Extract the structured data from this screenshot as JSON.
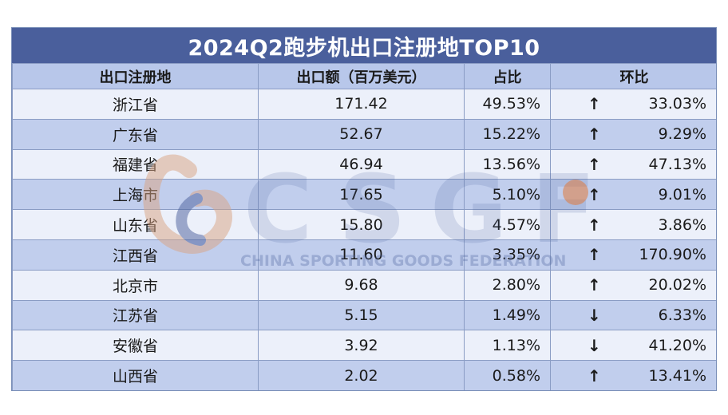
{
  "title": "2024Q2跑步机出口注册地TOP10",
  "headers": [
    "出口注册地",
    "出口额（百万美元）",
    "占比",
    "环比"
  ],
  "rows": [
    {
      "region": "浙江省",
      "value": "171.42",
      "share": "49.53%",
      "arrow": "↑",
      "change": "33.03%"
    },
    {
      "region": "广东省",
      "value": "52.67",
      "share": "15.22%",
      "arrow": "↑",
      "change": "9.29%"
    },
    {
      "region": "福建省",
      "value": "46.94",
      "share": "13.56%",
      "arrow": "↑",
      "change": "47.13%"
    },
    {
      "region": "上海市",
      "value": "17.65",
      "share": "5.10%",
      "arrow": "↑",
      "change": "9.01%"
    },
    {
      "region": "山东省",
      "value": "15.80",
      "share": "4.57%",
      "arrow": "↑",
      "change": "3.86%"
    },
    {
      "region": "江西省",
      "value": "11.60",
      "share": "3.35%",
      "arrow": "↑",
      "change": "170.90%"
    },
    {
      "region": "北京市",
      "value": "9.68",
      "share": "2.80%",
      "arrow": "↑",
      "change": "20.02%"
    },
    {
      "region": "江苏省",
      "value": "5.15",
      "share": "1.49%",
      "arrow": "↓",
      "change": "6.33%"
    },
    {
      "region": "安徽省",
      "value": "3.92",
      "share": "1.13%",
      "arrow": "↓",
      "change": "41.20%"
    },
    {
      "region": "山西省",
      "value": "2.02",
      "share": "0.58%",
      "arrow": "↑",
      "change": "13.41%"
    }
  ],
  "watermark": {
    "logo_text": "CSGF",
    "tagline": "CHINA SPORTING GOODS FEDERATION"
  },
  "colors": {
    "title_bg": "#4a5f9c",
    "header_bg": "#b8c7ea",
    "row_light": "#e9eef9",
    "row_dark": "#b8c7ea",
    "border": "#8a9cc4"
  }
}
